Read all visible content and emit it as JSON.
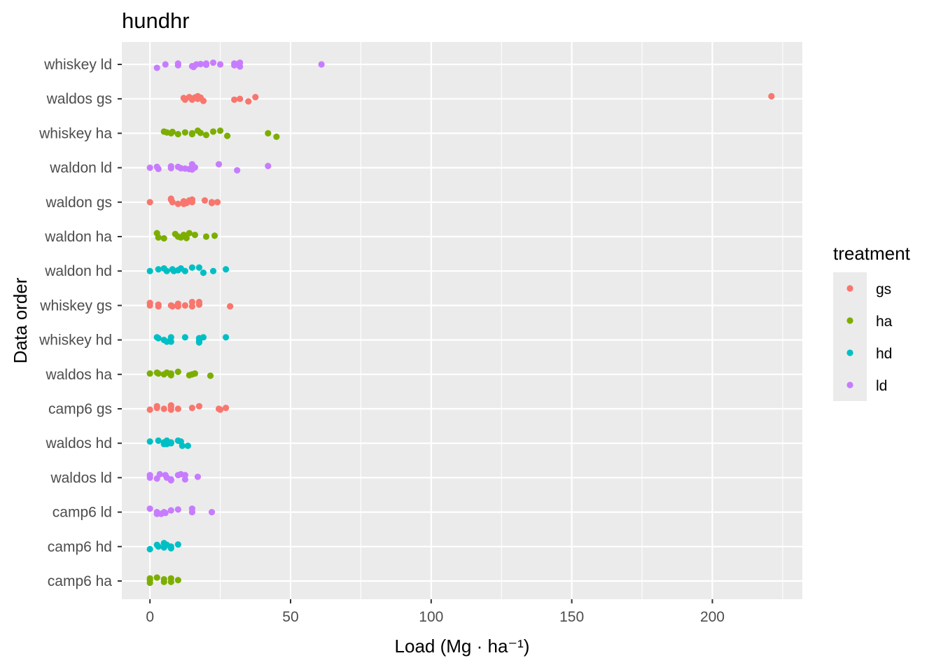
{
  "chart_data": {
    "type": "scatter",
    "title": "hundhr",
    "xlabel": "Load (Mg · ha⁻¹)",
    "ylabel": "Data order",
    "xlim": [
      -10,
      232
    ],
    "x_ticks": [
      0,
      50,
      100,
      150,
      200
    ],
    "x_tick_labels": [
      "0",
      "50",
      "100",
      "150",
      "200"
    ],
    "grid": true,
    "panel_background": "#ebebeb",
    "categories": [
      "whiskey ld",
      "waldos gs",
      "whiskey ha",
      "waldon ld",
      "waldon gs",
      "waldon ha",
      "waldon hd",
      "whiskey gs",
      "whiskey hd",
      "waldos ha",
      "camp6 gs",
      "waldos hd",
      "waldos ld",
      "camp6 ld",
      "camp6 hd",
      "camp6 ha"
    ],
    "legend": {
      "title": "treatment",
      "position": "right",
      "entries": [
        {
          "label": "gs",
          "color": "#F8766D"
        },
        {
          "label": "ha",
          "color": "#7CAE00"
        },
        {
          "label": "hd",
          "color": "#00BFC4"
        },
        {
          "label": "ld",
          "color": "#C77CFF"
        }
      ]
    },
    "series": [
      {
        "category": "whiskey ld",
        "treatment": "ld",
        "points": [
          [
            2.5,
            -0.2
          ],
          [
            5.5,
            0
          ],
          [
            10,
            0.05
          ],
          [
            10,
            -0.05
          ],
          [
            15,
            -0.1
          ],
          [
            15.5,
            -0.15
          ],
          [
            16.5,
            0
          ],
          [
            18,
            0.02
          ],
          [
            20,
            0.05
          ],
          [
            20,
            -0.02
          ],
          [
            22.5,
            0.1
          ],
          [
            25,
            0
          ],
          [
            30,
            0.05
          ],
          [
            30,
            -0.05
          ],
          [
            31,
            0
          ],
          [
            32,
            0.1
          ],
          [
            32,
            -0.12
          ],
          [
            61,
            0
          ]
        ]
      },
      {
        "category": "waldos gs",
        "treatment": "gs",
        "points": [
          [
            12,
            0.05
          ],
          [
            12.5,
            -0.05
          ],
          [
            14,
            0.1
          ],
          [
            15,
            0
          ],
          [
            15,
            -0.05
          ],
          [
            16,
            0.08
          ],
          [
            17,
            0
          ],
          [
            17,
            0.15
          ],
          [
            18,
            0.07
          ],
          [
            19,
            -0.12
          ],
          [
            30,
            -0.05
          ],
          [
            32,
            0
          ],
          [
            35,
            -0.15
          ],
          [
            37.5,
            0.1
          ],
          [
            221,
            0.15
          ]
        ]
      },
      {
        "category": "whiskey ha",
        "treatment": "ha",
        "points": [
          [
            5,
            0.1
          ],
          [
            6,
            0.05
          ],
          [
            7.5,
            0
          ],
          [
            8,
            0.08
          ],
          [
            10,
            -0.05
          ],
          [
            12.5,
            0.05
          ],
          [
            15,
            0
          ],
          [
            15,
            -0.05
          ],
          [
            17,
            0.15
          ],
          [
            18,
            0.02
          ],
          [
            20,
            -0.1
          ],
          [
            22.5,
            0.1
          ],
          [
            25,
            0.15
          ],
          [
            27.5,
            -0.15
          ],
          [
            42,
            0
          ],
          [
            45,
            -0.2
          ]
        ]
      },
      {
        "category": "waldon ld",
        "treatment": "ld",
        "points": [
          [
            0,
            0
          ],
          [
            2.5,
            0.05
          ],
          [
            3,
            -0.07
          ],
          [
            7.5,
            0.08
          ],
          [
            7.5,
            -0.02
          ],
          [
            10,
            0.05
          ],
          [
            11,
            -0.03
          ],
          [
            12.5,
            -0.05
          ],
          [
            14,
            -0.08
          ],
          [
            15,
            0.2
          ],
          [
            15,
            0.03
          ],
          [
            15,
            -0.1
          ],
          [
            16,
            0.02
          ],
          [
            24.5,
            0.2
          ],
          [
            31,
            -0.15
          ],
          [
            42,
            0.1
          ]
        ]
      },
      {
        "category": "waldon gs",
        "treatment": "gs",
        "points": [
          [
            0,
            0
          ],
          [
            7.5,
            0.2
          ],
          [
            7.5,
            0.15
          ],
          [
            8,
            0
          ],
          [
            10,
            -0.1
          ],
          [
            12,
            -0.1
          ],
          [
            12,
            0.05
          ],
          [
            13,
            -0.05
          ],
          [
            14,
            0.1
          ],
          [
            15,
            0.15
          ],
          [
            15,
            0
          ],
          [
            19.5,
            0.1
          ],
          [
            22,
            0
          ],
          [
            22,
            -0.05
          ],
          [
            24,
            0
          ]
        ]
      },
      {
        "category": "waldon ha",
        "treatment": "ha",
        "points": [
          [
            2.5,
            0.2
          ],
          [
            3,
            -0.05
          ],
          [
            5,
            -0.1
          ],
          [
            9,
            0.15
          ],
          [
            10,
            0
          ],
          [
            11,
            -0.05
          ],
          [
            12,
            0.1
          ],
          [
            13,
            -0.08
          ],
          [
            14,
            0.2
          ],
          [
            16,
            0.1
          ],
          [
            20,
            0
          ],
          [
            23,
            0.05
          ]
        ]
      },
      {
        "category": "waldon hd",
        "treatment": "hd",
        "points": [
          [
            0,
            0
          ],
          [
            3,
            0.1
          ],
          [
            5,
            0.15
          ],
          [
            6,
            0
          ],
          [
            8,
            0.1
          ],
          [
            8.5,
            0
          ],
          [
            10,
            0.05
          ],
          [
            11,
            0.15
          ],
          [
            12.5,
            0
          ],
          [
            15,
            0.2
          ],
          [
            17.5,
            0.2
          ],
          [
            19,
            -0.1
          ],
          [
            22.5,
            0
          ],
          [
            27,
            0.1
          ]
        ]
      },
      {
        "category": "whiskey gs",
        "treatment": "gs",
        "points": [
          [
            0,
            0.15
          ],
          [
            0,
            0
          ],
          [
            3,
            0.05
          ],
          [
            3,
            -0.05
          ],
          [
            7.5,
            0
          ],
          [
            8,
            -0.05
          ],
          [
            10,
            0.1
          ],
          [
            10,
            -0.05
          ],
          [
            12.5,
            0
          ],
          [
            15,
            0.2
          ],
          [
            15,
            -0.05
          ],
          [
            17.5,
            0.2
          ],
          [
            17.5,
            0.05
          ],
          [
            28.5,
            -0.05
          ]
        ]
      },
      {
        "category": "whiskey hd",
        "treatment": "hd",
        "points": [
          [
            2.5,
            0.15
          ],
          [
            3,
            0.1
          ],
          [
            5,
            0
          ],
          [
            6,
            -0.1
          ],
          [
            7.5,
            0.15
          ],
          [
            7.5,
            -0.1
          ],
          [
            12.5,
            0.15
          ],
          [
            17.5,
            0.1
          ],
          [
            17.5,
            -0.05
          ],
          [
            17.5,
            -0.15
          ],
          [
            19,
            0.15
          ],
          [
            27,
            0.15
          ]
        ]
      },
      {
        "category": "waldos ha",
        "treatment": "ha",
        "points": [
          [
            0,
            0.05
          ],
          [
            2.5,
            0.1
          ],
          [
            3,
            0.05
          ],
          [
            5,
            0
          ],
          [
            6,
            0.1
          ],
          [
            7.5,
            0.05
          ],
          [
            7.5,
            -0.05
          ],
          [
            10,
            0.15
          ],
          [
            14,
            -0.05
          ],
          [
            15,
            0
          ],
          [
            16,
            0.05
          ],
          [
            21.5,
            -0.08
          ]
        ]
      },
      {
        "category": "camp6 gs",
        "treatment": "gs",
        "points": [
          [
            0,
            -0.05
          ],
          [
            2.5,
            0.15
          ],
          [
            2.5,
            0.05
          ],
          [
            5,
            0
          ],
          [
            7.5,
            0.2
          ],
          [
            7.5,
            0.1
          ],
          [
            7.5,
            -0.05
          ],
          [
            10,
            0
          ],
          [
            15,
            0.05
          ],
          [
            17.5,
            0.15
          ],
          [
            24.5,
            0
          ],
          [
            25,
            -0.05
          ],
          [
            27,
            0.05
          ]
        ]
      },
      {
        "category": "waldos hd",
        "treatment": "hd",
        "points": [
          [
            0,
            0.1
          ],
          [
            3,
            0.15
          ],
          [
            5,
            0.05
          ],
          [
            5,
            -0.05
          ],
          [
            6,
            0.15
          ],
          [
            6,
            -0.05
          ],
          [
            7.5,
            0.05
          ],
          [
            7.5,
            0
          ],
          [
            10,
            0.15
          ],
          [
            11,
            0.1
          ],
          [
            11.5,
            -0.15
          ],
          [
            13.5,
            -0.15
          ]
        ]
      },
      {
        "category": "waldos ld",
        "treatment": "ld",
        "points": [
          [
            0,
            0.15
          ],
          [
            0,
            0
          ],
          [
            2.5,
            -0.05
          ],
          [
            3.5,
            0.2
          ],
          [
            5.5,
            0.15
          ],
          [
            6,
            0
          ],
          [
            7.5,
            -0.15
          ],
          [
            7.5,
            -0.1
          ],
          [
            10,
            0.15
          ],
          [
            11,
            0.2
          ],
          [
            12.5,
            -0.1
          ],
          [
            12.5,
            0.15
          ],
          [
            17,
            0.05
          ]
        ]
      },
      {
        "category": "camp6 ld",
        "treatment": "ld",
        "points": [
          [
            0,
            0.2
          ],
          [
            2.5,
            0
          ],
          [
            2.5,
            -0.1
          ],
          [
            4,
            -0.1
          ],
          [
            5,
            0
          ],
          [
            5.5,
            -0.05
          ],
          [
            7.5,
            0.1
          ],
          [
            10,
            0.15
          ],
          [
            15,
            0.2
          ],
          [
            15,
            0
          ],
          [
            22,
            0
          ]
        ]
      },
      {
        "category": "camp6 hd",
        "treatment": "hd",
        "points": [
          [
            0,
            -0.15
          ],
          [
            2.5,
            0.1
          ],
          [
            3,
            0
          ],
          [
            5,
            0.2
          ],
          [
            5,
            -0.05
          ],
          [
            6,
            0.1
          ],
          [
            7.5,
            0
          ],
          [
            7.5,
            -0.1
          ],
          [
            10,
            0.12
          ]
        ]
      },
      {
        "category": "camp6 ha",
        "treatment": "ha",
        "points": [
          [
            0,
            0.15
          ],
          [
            0,
            0.05
          ],
          [
            0,
            -0.1
          ],
          [
            2.5,
            0.2
          ],
          [
            5,
            0.1
          ],
          [
            5,
            -0.05
          ],
          [
            7.5,
            0.15
          ],
          [
            7.5,
            -0.05
          ],
          [
            10,
            0.05
          ]
        ]
      }
    ]
  }
}
